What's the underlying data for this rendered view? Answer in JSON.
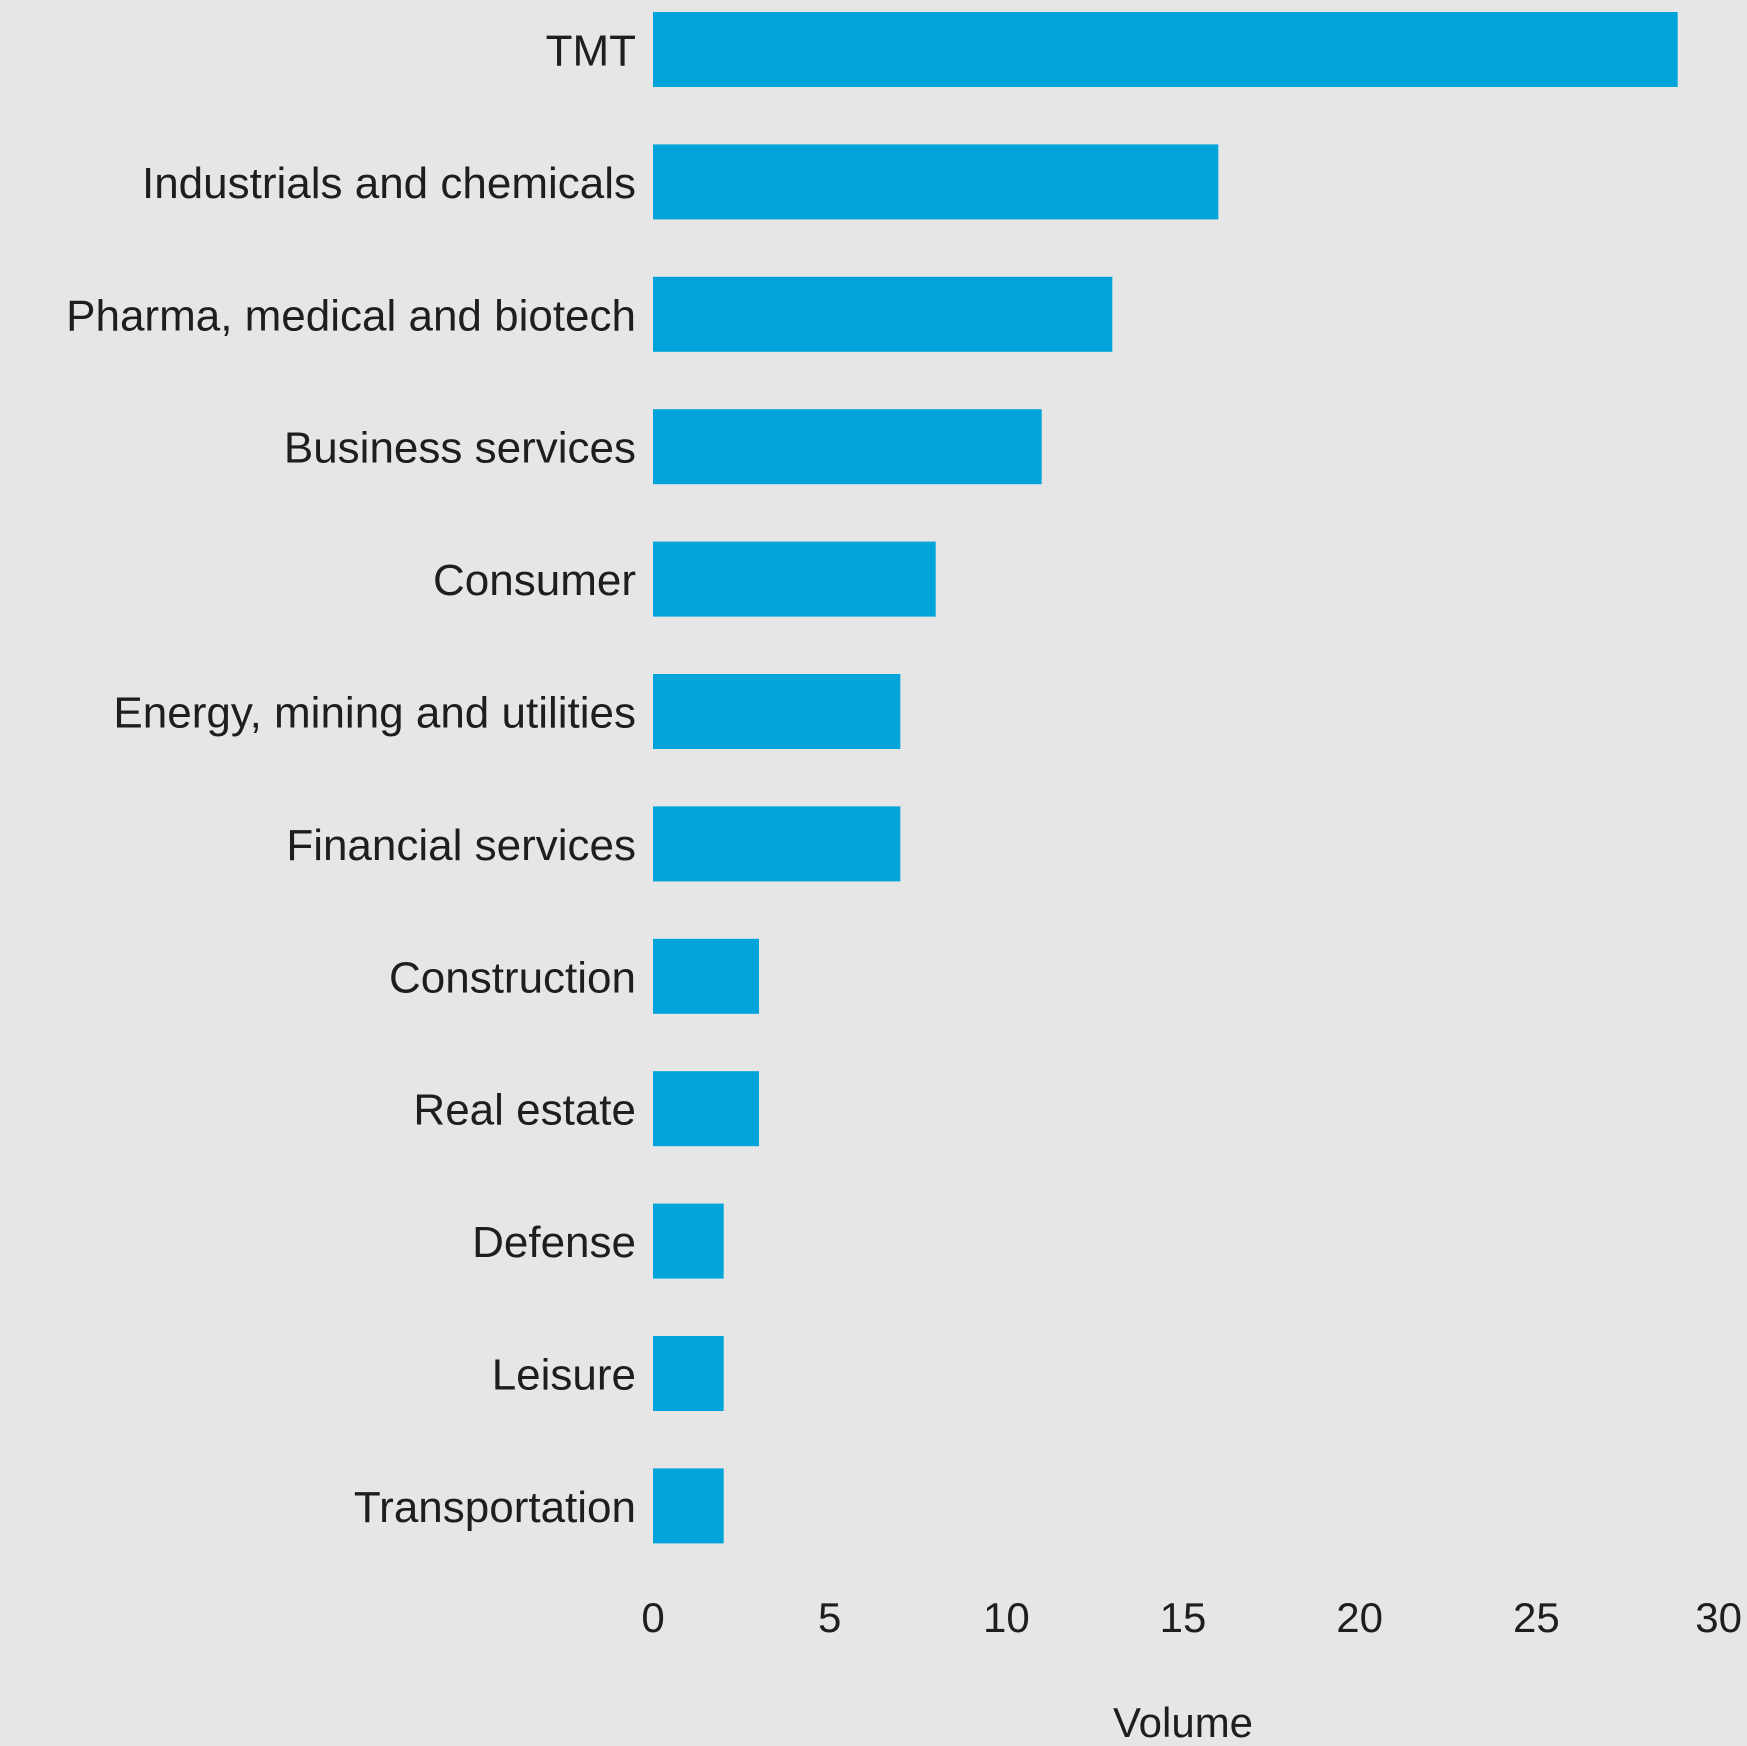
{
  "chart_data": {
    "type": "bar",
    "orientation": "horizontal",
    "categories": [
      "TMT",
      "Industrials and chemicals",
      "Pharma, medical and biotech",
      "Business services",
      "Consumer",
      "Energy, mining and utilities",
      "Financial services",
      "Construction",
      "Real estate",
      "Defense",
      "Leisure",
      "Transportation"
    ],
    "values": [
      29,
      16,
      13,
      11,
      8,
      7,
      7,
      3,
      3,
      2,
      2,
      2
    ],
    "title": "",
    "xlabel": "Volume",
    "ylabel": "",
    "xlim": [
      0,
      30
    ],
    "x_ticks": [
      "0",
      "5",
      "10",
      "15",
      "20",
      "25",
      "30"
    ],
    "grid": false,
    "legend": "none",
    "colors": {
      "bar": "#00a3da",
      "background": "#e6e6e6",
      "text": "#1e1e1e"
    }
  }
}
